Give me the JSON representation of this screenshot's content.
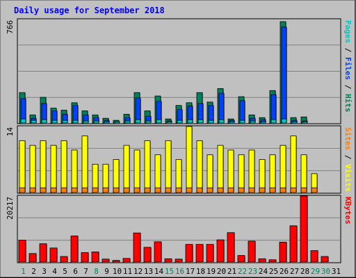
{
  "chart_data": {
    "type": "bar",
    "title": "Daily usage for September 2018",
    "categories": [
      "1",
      "2",
      "3",
      "4",
      "5",
      "6",
      "7",
      "8",
      "9",
      "10",
      "11",
      "12",
      "13",
      "14",
      "15",
      "16",
      "17",
      "18",
      "19",
      "20",
      "21",
      "22",
      "23",
      "24",
      "25",
      "26",
      "27",
      "28",
      "29",
      "30",
      "31"
    ],
    "weekend_days": [
      "1",
      "8",
      "15",
      "16",
      "22",
      "23",
      "29",
      "30"
    ],
    "panels": [
      {
        "name": "hits-files-pages",
        "axis_label": "Pages / Files / Hits",
        "axis_label_parts": [
          "Pages",
          " / ",
          "Files",
          " / ",
          "Hits"
        ],
        "axis_label_colors": [
          "#00c8c8",
          "#000000",
          "#0040ff",
          "#000000",
          "#00805c"
        ],
        "ymax_label": "766",
        "ylim": [
          0,
          766
        ],
        "series": [
          {
            "name": "Hits",
            "color": "#00805c",
            "values": [
              225,
              60,
              190,
              110,
              95,
              150,
              90,
              60,
              35,
              20,
              65,
              225,
              90,
              200,
              30,
              130,
              150,
              225,
              155,
              255,
              30,
              195,
              60,
              40,
              240,
              750,
              40,
              45,
              0,
              0,
              0
            ]
          },
          {
            "name": "Files",
            "color": "#0040ff",
            "values": [
              180,
              35,
              145,
              90,
              65,
              130,
              60,
              40,
              20,
              10,
              40,
              185,
              50,
              160,
              15,
              100,
              125,
              145,
              130,
              220,
              20,
              165,
              35,
              25,
              210,
              710,
              20,
              15,
              0,
              0,
              0
            ]
          },
          {
            "name": "Pages",
            "color": "#00c8c8",
            "values": [
              30,
              20,
              25,
              20,
              20,
              20,
              15,
              15,
              10,
              5,
              15,
              25,
              15,
              25,
              10,
              20,
              25,
              25,
              20,
              25,
              10,
              20,
              15,
              10,
              25,
              30,
              10,
              10,
              0,
              0,
              0
            ]
          }
        ]
      },
      {
        "name": "visits-sites",
        "axis_label": "Sites / Visits",
        "axis_label_parts": [
          "Sites",
          " / ",
          "Visits"
        ],
        "axis_label_colors": [
          "#ff8000",
          "#000000",
          "#ffff00"
        ],
        "ymax_label": "14",
        "ylim": [
          0,
          14
        ],
        "series": [
          {
            "name": "Visits",
            "color": "#ffff00",
            "values": [
              11,
              10,
              11,
              10,
              11,
              9,
              12,
              6,
              6,
              7,
              10,
              9,
              11,
              8,
              11,
              7,
              14,
              11,
              8,
              10,
              9,
              8,
              9,
              7,
              8,
              10,
              12,
              8,
              4,
              0,
              0
            ]
          },
          {
            "name": "Sites",
            "color": "#ff8000",
            "values": [
              1,
              1,
              1,
              1,
              1,
              1,
              1,
              1,
              1,
              1,
              1,
              1,
              1,
              1,
              1,
              1,
              1,
              1,
              1,
              1,
              1,
              1,
              1,
              1,
              1,
              1,
              1,
              1,
              1,
              0,
              0
            ]
          }
        ]
      },
      {
        "name": "kbytes",
        "axis_label": "KBytes",
        "axis_label_parts": [
          "KBytes"
        ],
        "axis_label_colors": [
          "#ff0000"
        ],
        "ymax_label": "20217",
        "ylim": [
          0,
          20217
        ],
        "series": [
          {
            "name": "KBytes",
            "color": "#ff0000",
            "values": [
              6700,
              2600,
              5600,
              4300,
              1700,
              8000,
              2900,
              3100,
              900,
              500,
              1100,
              8900,
              4500,
              6200,
              1000,
              900,
              5400,
              5400,
              5400,
              6800,
              9000,
              2000,
              6400,
              1000,
              700,
              6100,
              11100,
              20217,
              3500,
              1700,
              0
            ]
          }
        ]
      }
    ],
    "colors": {
      "background": "#c0c0c0",
      "plot": "#c0c0c0",
      "title": "#0000ff",
      "weekday": "#000000",
      "weekend": "#00805c",
      "grid": "#808080"
    }
  }
}
